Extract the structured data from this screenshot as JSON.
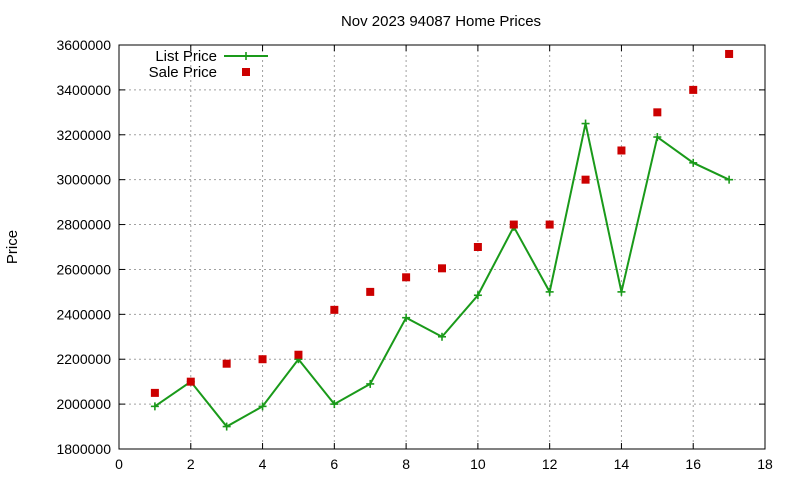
{
  "chart_data": {
    "type": "line",
    "title": "Nov 2023 94087 Home Prices",
    "xlabel": "",
    "ylabel": "Price",
    "xlim": [
      0,
      18
    ],
    "ylim": [
      1800000,
      3600000
    ],
    "xticks": [
      0,
      2,
      4,
      6,
      8,
      10,
      12,
      14,
      16,
      18
    ],
    "yticks": [
      1800000,
      2000000,
      2200000,
      2400000,
      2600000,
      2800000,
      3000000,
      3200000,
      3400000,
      3600000
    ],
    "grid": true,
    "legend_position": "top-left",
    "series": [
      {
        "name": "List Price",
        "style": "line+cross",
        "color": "#1a9a1a",
        "x": [
          1,
          2,
          3,
          4,
          5,
          6,
          7,
          8,
          9,
          10,
          11,
          12,
          13,
          14,
          15,
          16,
          17
        ],
        "y": [
          1990000,
          2100000,
          1900000,
          1990000,
          2200000,
          2000000,
          2090000,
          2385000,
          2300000,
          2485000,
          2790000,
          2500000,
          3250000,
          2500000,
          3190000,
          3075000,
          3000000
        ]
      },
      {
        "name": "Sale Price",
        "style": "square",
        "color": "#cc0000",
        "x": [
          1,
          2,
          3,
          4,
          5,
          6,
          7,
          8,
          9,
          10,
          11,
          12,
          13,
          14,
          15,
          16,
          17
        ],
        "y": [
          2050000,
          2100000,
          2180000,
          2200000,
          2220000,
          2420000,
          2500000,
          2565000,
          2605000,
          2700000,
          2800000,
          2800000,
          3000000,
          3130000,
          3300000,
          3400000,
          3560000
        ]
      }
    ]
  }
}
